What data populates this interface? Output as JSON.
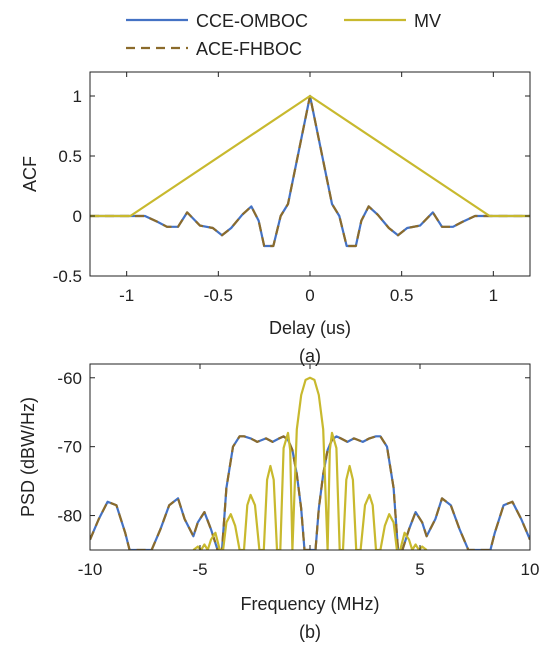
{
  "legend": {
    "entries": [
      {
        "label": "CCE-OMBOC",
        "color": "#4472C4",
        "dash": "solid"
      },
      {
        "label": "MV",
        "color": "#C8B92E",
        "dash": "solid"
      },
      {
        "label": "ACE-FHBOC",
        "color": "#8B6B2B",
        "dash": "dashed"
      }
    ]
  },
  "chart_data": [
    {
      "type": "line",
      "caption": "(a)",
      "xlabel": "Delay (us)",
      "ylabel": "ACF",
      "xlim": [
        -1.2,
        1.2
      ],
      "ylim": [
        -0.5,
        1.2
      ],
      "x_ticks": [
        -1,
        -0.5,
        0,
        0.5,
        1
      ],
      "x_tick_labels": [
        "-1",
        "-0.5",
        "0",
        "0.5",
        "1"
      ],
      "y_ticks": [
        -0.5,
        0,
        0.5,
        1
      ],
      "y_tick_labels": [
        "-0.5",
        "0",
        "0.5",
        "1"
      ],
      "grid": false,
      "series": [
        {
          "name": "CCE-OMBOC",
          "color": "#4472C4",
          "dash": "solid",
          "x": [
            -1.2,
            -0.9,
            -0.83,
            -0.78,
            -0.72,
            -0.67,
            -0.6,
            -0.53,
            -0.48,
            -0.43,
            -0.37,
            -0.32,
            -0.28,
            -0.25,
            -0.2,
            -0.16,
            -0.12,
            0,
            0.12,
            0.16,
            0.2,
            0.25,
            0.28,
            0.32,
            0.37,
            0.43,
            0.48,
            0.53,
            0.6,
            0.67,
            0.72,
            0.78,
            0.83,
            0.9,
            1.2
          ],
          "y": [
            0,
            0,
            -0.05,
            -0.09,
            -0.09,
            0.03,
            -0.08,
            -0.1,
            -0.16,
            -0.1,
            0.01,
            0.08,
            -0.04,
            -0.25,
            -0.25,
            0.0,
            0.1,
            1.0,
            0.1,
            0.0,
            -0.25,
            -0.25,
            -0.04,
            0.08,
            0.01,
            -0.1,
            -0.16,
            -0.1,
            -0.08,
            0.03,
            -0.09,
            -0.09,
            -0.05,
            0,
            0
          ]
        },
        {
          "name": "ACE-FHBOC",
          "color": "#8B6B2B",
          "dash": "dashed",
          "x": [
            -1.2,
            -0.9,
            -0.83,
            -0.78,
            -0.72,
            -0.67,
            -0.6,
            -0.53,
            -0.48,
            -0.43,
            -0.37,
            -0.32,
            -0.28,
            -0.25,
            -0.2,
            -0.16,
            -0.12,
            0,
            0.12,
            0.16,
            0.2,
            0.25,
            0.28,
            0.32,
            0.37,
            0.43,
            0.48,
            0.53,
            0.6,
            0.67,
            0.72,
            0.78,
            0.83,
            0.9,
            1.2
          ],
          "y": [
            0,
            0,
            -0.05,
            -0.09,
            -0.09,
            0.03,
            -0.08,
            -0.1,
            -0.16,
            -0.1,
            0.01,
            0.08,
            -0.04,
            -0.25,
            -0.25,
            0.0,
            0.1,
            1.0,
            0.1,
            0.0,
            -0.25,
            -0.25,
            -0.04,
            0.08,
            0.01,
            -0.1,
            -0.16,
            -0.1,
            -0.08,
            0.03,
            -0.09,
            -0.09,
            -0.05,
            0,
            0
          ]
        },
        {
          "name": "MV",
          "color": "#C8B92E",
          "dash": "solid",
          "x": [
            -1.2,
            -0.98,
            0,
            0.98,
            1.2
          ],
          "y": [
            0,
            0,
            1.0,
            0,
            0
          ]
        }
      ]
    },
    {
      "type": "line",
      "caption": "(b)",
      "xlabel": "Frequency (MHz)",
      "ylabel": "PSD (dBW/Hz)",
      "xlim": [
        -10,
        10
      ],
      "ylim": [
        -85,
        -58
      ],
      "x_ticks": [
        -10,
        -5,
        0,
        5,
        10
      ],
      "x_tick_labels": [
        "-10",
        "-5",
        "0",
        "5",
        "10"
      ],
      "y_ticks": [
        -80,
        -70,
        -60
      ],
      "y_tick_labels": [
        "-80",
        "-70",
        "-60"
      ],
      "grid": false,
      "series": [
        {
          "name": "CCE-OMBOC",
          "color": "#4472C4",
          "dash": "solid",
          "x": [
            -10,
            -9.6,
            -9.2,
            -8.8,
            -8.4,
            -8.2,
            -7.5,
            -7.2,
            -6.8,
            -6.4,
            -6.0,
            -5.7,
            -5.3,
            -5.1,
            -4.8,
            -4.5,
            -4.2,
            -4.0,
            -3.8,
            -3.5,
            -3.2,
            -3.0,
            -2.7,
            -2.4,
            -2.0,
            -1.7,
            -1.4,
            -1.2,
            -1.0,
            -0.8,
            -0.6,
            -0.4,
            -0.25,
            -0.1,
            -0.02,
            0.02,
            0.1,
            0.25,
            0.4,
            0.6,
            0.8,
            1.0,
            1.2,
            1.4,
            1.7,
            2.0,
            2.4,
            2.7,
            3.0,
            3.2,
            3.5,
            3.8,
            4.0,
            4.2,
            4.5,
            4.8,
            5.1,
            5.3,
            5.7,
            6.0,
            6.4,
            6.8,
            7.2,
            7.5,
            8.2,
            8.4,
            8.8,
            9.2,
            9.6,
            10
          ],
          "y": [
            -83.5,
            -80.5,
            -78.0,
            -78.5,
            -82.5,
            -85,
            -85,
            -85,
            -82.0,
            -78.5,
            -77.5,
            -80.5,
            -83.0,
            -81.0,
            -79.5,
            -82.0,
            -85,
            -85,
            -76.0,
            -70.0,
            -68.5,
            -68.5,
            -68.8,
            -69.3,
            -68.8,
            -69.3,
            -68.8,
            -68.5,
            -69.0,
            -70.5,
            -74.0,
            -79.0,
            -85,
            -85,
            -85,
            -85,
            -85,
            -85,
            -79.0,
            -74.0,
            -70.5,
            -69.0,
            -68.5,
            -68.8,
            -69.3,
            -68.8,
            -69.3,
            -68.8,
            -68.5,
            -68.5,
            -70.0,
            -76.0,
            -85,
            -85,
            -82.0,
            -79.5,
            -81.0,
            -83.0,
            -80.5,
            -77.5,
            -78.5,
            -82.0,
            -85,
            -85,
            -85,
            -82.5,
            -78.5,
            -78.0,
            -80.5,
            -83.5
          ]
        },
        {
          "name": "ACE-FHBOC",
          "color": "#8B6B2B",
          "dash": "dashed",
          "x": [
            -10,
            -9.6,
            -9.2,
            -8.8,
            -8.4,
            -8.2,
            -7.5,
            -7.2,
            -6.8,
            -6.4,
            -6.0,
            -5.7,
            -5.3,
            -5.1,
            -4.8,
            -4.5,
            -4.2,
            -4.0,
            -3.8,
            -3.5,
            -3.2,
            -3.0,
            -2.7,
            -2.4,
            -2.0,
            -1.7,
            -1.4,
            -1.2,
            -1.0,
            -0.8,
            -0.6,
            -0.4,
            -0.25,
            -0.1,
            -0.02,
            0.02,
            0.1,
            0.25,
            0.4,
            0.6,
            0.8,
            1.0,
            1.2,
            1.4,
            1.7,
            2.0,
            2.4,
            2.7,
            3.0,
            3.2,
            3.5,
            3.8,
            4.0,
            4.2,
            4.5,
            4.8,
            5.1,
            5.3,
            5.7,
            6.0,
            6.4,
            6.8,
            7.2,
            7.5,
            8.2,
            8.4,
            8.8,
            9.2,
            9.6,
            10
          ],
          "y": [
            -83.5,
            -80.5,
            -78.0,
            -78.5,
            -82.5,
            -85,
            -85,
            -85,
            -82.0,
            -78.5,
            -77.5,
            -80.5,
            -83.0,
            -81.0,
            -79.5,
            -82.0,
            -85,
            -85,
            -76.0,
            -70.0,
            -68.5,
            -68.5,
            -68.8,
            -69.3,
            -68.8,
            -69.3,
            -68.8,
            -68.5,
            -69.0,
            -70.5,
            -74.0,
            -79.0,
            -85,
            -85,
            -85,
            -85,
            -85,
            -85,
            -79.0,
            -74.0,
            -70.5,
            -69.0,
            -68.5,
            -68.8,
            -69.3,
            -68.8,
            -69.3,
            -68.8,
            -68.5,
            -68.5,
            -70.0,
            -76.0,
            -85,
            -85,
            -82.0,
            -79.5,
            -81.0,
            -83.0,
            -80.5,
            -77.5,
            -78.5,
            -82.0,
            -85,
            -85,
            -85,
            -82.5,
            -78.5,
            -78.0,
            -80.5,
            -83.5
          ]
        },
        {
          "name": "MV",
          "color": "#C8B92E",
          "dash": "solid",
          "x": [
            -5.3,
            -5.1,
            -4.95,
            -4.8,
            -4.65,
            -4.5,
            -4.3,
            -4.1,
            -3.95,
            -3.8,
            -3.6,
            -3.4,
            -3.2,
            -3.0,
            -2.85,
            -2.7,
            -2.5,
            -2.3,
            -2.1,
            -1.95,
            -1.8,
            -1.65,
            -1.5,
            -1.35,
            -1.2,
            -1.0,
            -0.9,
            -0.8,
            -0.6,
            -0.4,
            -0.2,
            0,
            0.2,
            0.4,
            0.6,
            0.8,
            0.9,
            1.0,
            1.2,
            1.35,
            1.5,
            1.65,
            1.8,
            1.95,
            2.1,
            2.3,
            2.5,
            2.7,
            2.85,
            3.0,
            3.2,
            3.4,
            3.6,
            3.8,
            3.95,
            4.1,
            4.3,
            4.5,
            4.65,
            4.8,
            4.95,
            5.1,
            5.3
          ],
          "y": [
            -85,
            -84.5,
            -85,
            -84.2,
            -85,
            -83.5,
            -82.5,
            -85,
            -85,
            -81.0,
            -79.8,
            -81.5,
            -85,
            -85,
            -78.5,
            -77.0,
            -78.5,
            -85,
            -85,
            -74.8,
            -72.8,
            -74.8,
            -85,
            -85,
            -70.2,
            -68.0,
            -70.5,
            -85,
            -67.5,
            -62.5,
            -60.3,
            -60.0,
            -60.3,
            -62.5,
            -67.5,
            -85,
            -70.5,
            -68.0,
            -70.2,
            -85,
            -85,
            -74.8,
            -72.8,
            -74.8,
            -85,
            -85,
            -78.5,
            -77.0,
            -78.5,
            -85,
            -85,
            -81.5,
            -79.8,
            -81.0,
            -85,
            -85,
            -82.5,
            -83.5,
            -85,
            -84.2,
            -85,
            -84.5,
            -85
          ]
        }
      ]
    }
  ]
}
